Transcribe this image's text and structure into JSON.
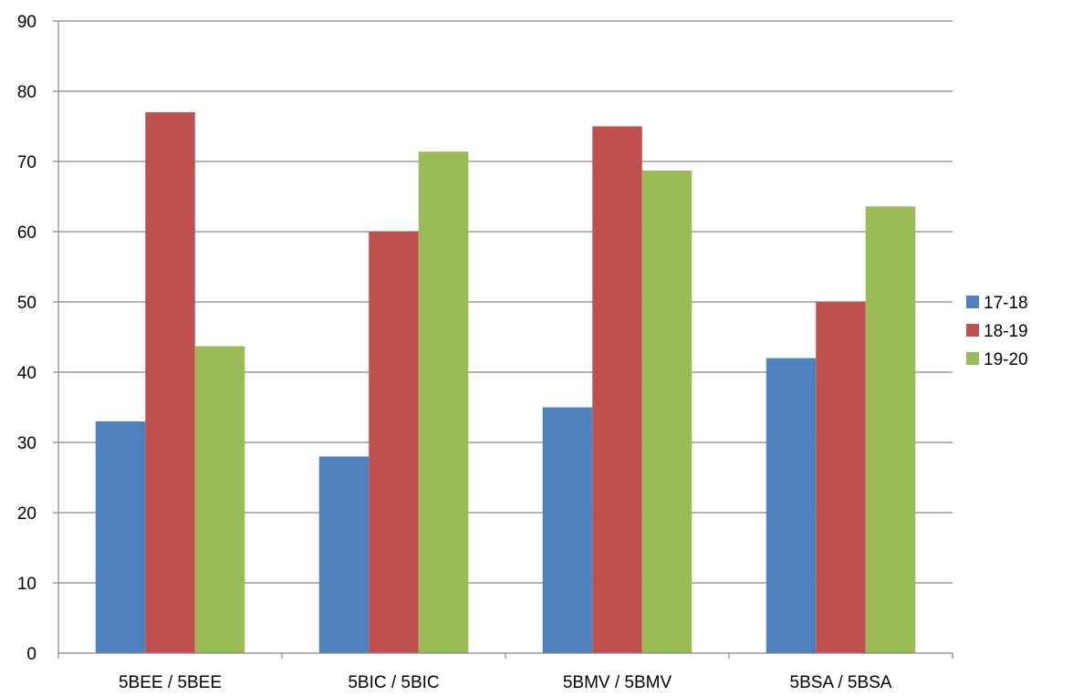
{
  "chart_data": {
    "type": "bar",
    "title": "",
    "xlabel": "",
    "ylabel": "",
    "categories": [
      "5BEE / 5BEE",
      "5BIC / 5BIC",
      "5BMV / 5BMV",
      "5BSA / 5BSA"
    ],
    "series": [
      {
        "name": "17-18",
        "color": "#4F81BD",
        "values": [
          33,
          28,
          35,
          42
        ]
      },
      {
        "name": "18-19",
        "color": "#C0504D",
        "values": [
          77,
          60,
          75,
          50
        ]
      },
      {
        "name": "19-20",
        "color": "#9BBB59",
        "values": [
          43.7,
          71.4,
          68.7,
          63.6
        ]
      }
    ],
    "ylim": [
      0,
      90
    ],
    "yticks": [
      0,
      10,
      20,
      30,
      40,
      50,
      60,
      70,
      80,
      90
    ],
    "grid": true,
    "legend_position": "right"
  }
}
